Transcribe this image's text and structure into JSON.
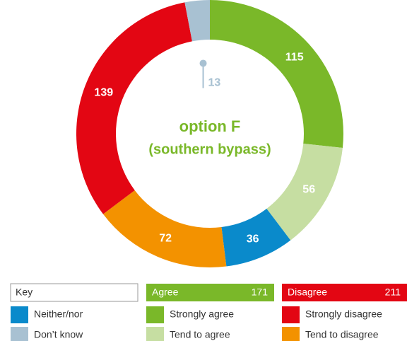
{
  "chart_data": {
    "type": "donut",
    "title": "option F",
    "subtitle": "(southern bypass)",
    "categories": [
      "Strongly agree",
      "Tend to agree",
      "Neither/nor",
      "Tend to disagree",
      "Strongly disagree",
      "Don’t know"
    ],
    "values": [
      115,
      56,
      36,
      72,
      139,
      13
    ],
    "colors": [
      "#7ab829",
      "#c6dea2",
      "#0a8acb",
      "#f39200",
      "#e30613",
      "#a8c1d2"
    ],
    "legend_title": "Key",
    "groups": [
      {
        "name": "Agree",
        "total": 171,
        "color": "#7ab829"
      },
      {
        "name": "Disagree",
        "total": 211,
        "color": "#e30613"
      }
    ]
  }
}
